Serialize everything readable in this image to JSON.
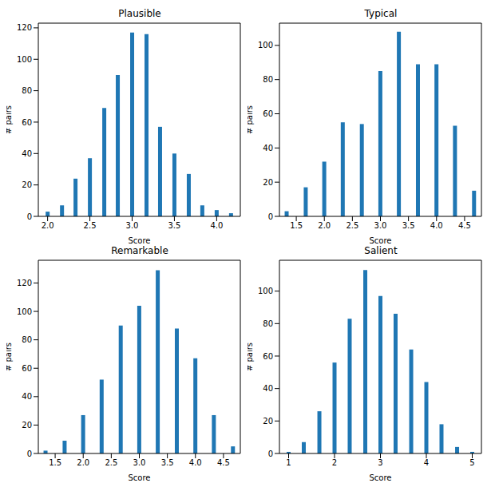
{
  "chart_data": [
    {
      "type": "bar",
      "title": "Plausible",
      "x_label": "Score",
      "y_label": "# pairs",
      "color": "#1f77b4",
      "grid": false,
      "x": [
        2.0,
        2.17,
        2.33,
        2.5,
        2.67,
        2.83,
        3.0,
        3.17,
        3.33,
        3.5,
        3.67,
        3.83,
        4.0,
        4.17
      ],
      "values": [
        3,
        7,
        24,
        37,
        69,
        90,
        117,
        116,
        57,
        40,
        27,
        7,
        4,
        2
      ],
      "xlim": [
        1.89,
        4.28
      ],
      "xticks": [
        {
          "value": 2,
          "label": "2.0"
        },
        2.5,
        {
          "value": 3,
          "label": "3.0"
        },
        3.5,
        {
          "value": 4,
          "label": "4.0"
        }
      ],
      "ylim": [
        0,
        123
      ],
      "yticks": [
        0,
        20,
        40,
        60,
        80,
        100,
        120
      ]
    },
    {
      "type": "bar",
      "title": "Typical",
      "x_label": "Score",
      "y_label": "# pairs",
      "color": "#1f77b4",
      "grid": false,
      "x": [
        1.33,
        1.67,
        2.0,
        2.33,
        2.67,
        3.0,
        3.33,
        3.67,
        4.0,
        4.33,
        4.67
      ],
      "values": [
        3,
        17,
        32,
        55,
        54,
        85,
        108,
        89,
        89,
        53,
        15
      ],
      "xlim": [
        1.2,
        4.8
      ],
      "xticks": [
        1.5,
        {
          "value": 2,
          "label": "2.0"
        },
        2.5,
        {
          "value": 3,
          "label": "3.0"
        },
        3.5,
        {
          "value": 4,
          "label": "4.0"
        },
        4.5
      ],
      "ylim": [
        0,
        113
      ],
      "yticks": [
        0,
        20,
        40,
        60,
        80,
        100
      ]
    },
    {
      "type": "bar",
      "title": "Remarkable",
      "x_label": "Score",
      "y_label": "# pairs",
      "color": "#1f77b4",
      "grid": false,
      "x": [
        1.33,
        1.67,
        2.0,
        2.33,
        2.67,
        3.0,
        3.33,
        3.67,
        4.0,
        4.33,
        4.67
      ],
      "values": [
        2,
        9,
        27,
        52,
        90,
        104,
        129,
        88,
        67,
        27,
        5
      ],
      "xlim": [
        1.2,
        4.8
      ],
      "xticks": [
        1.5,
        {
          "value": 2,
          "label": "2.0"
        },
        2.5,
        {
          "value": 3,
          "label": "3.0"
        },
        3.5,
        {
          "value": 4,
          "label": "4.0"
        },
        4.5
      ],
      "ylim": [
        0,
        136
      ],
      "yticks": [
        0,
        20,
        40,
        60,
        80,
        100,
        120
      ]
    },
    {
      "type": "bar",
      "title": "Salient",
      "x_label": "Score",
      "y_label": "# pairs",
      "color": "#1f77b4",
      "grid": false,
      "x": [
        1.0,
        1.33,
        1.67,
        2.0,
        2.33,
        2.67,
        3.0,
        3.33,
        3.67,
        4.0,
        4.33,
        4.67,
        5.0
      ],
      "values": [
        1,
        7,
        26,
        56,
        83,
        113,
        97,
        86,
        64,
        44,
        18,
        4,
        1
      ],
      "xlim": [
        0.8,
        5.2
      ],
      "xticks": [
        1,
        2,
        3,
        4,
        5
      ],
      "ylim": [
        0,
        119
      ],
      "yticks": [
        0,
        20,
        40,
        60,
        80,
        100
      ]
    }
  ]
}
